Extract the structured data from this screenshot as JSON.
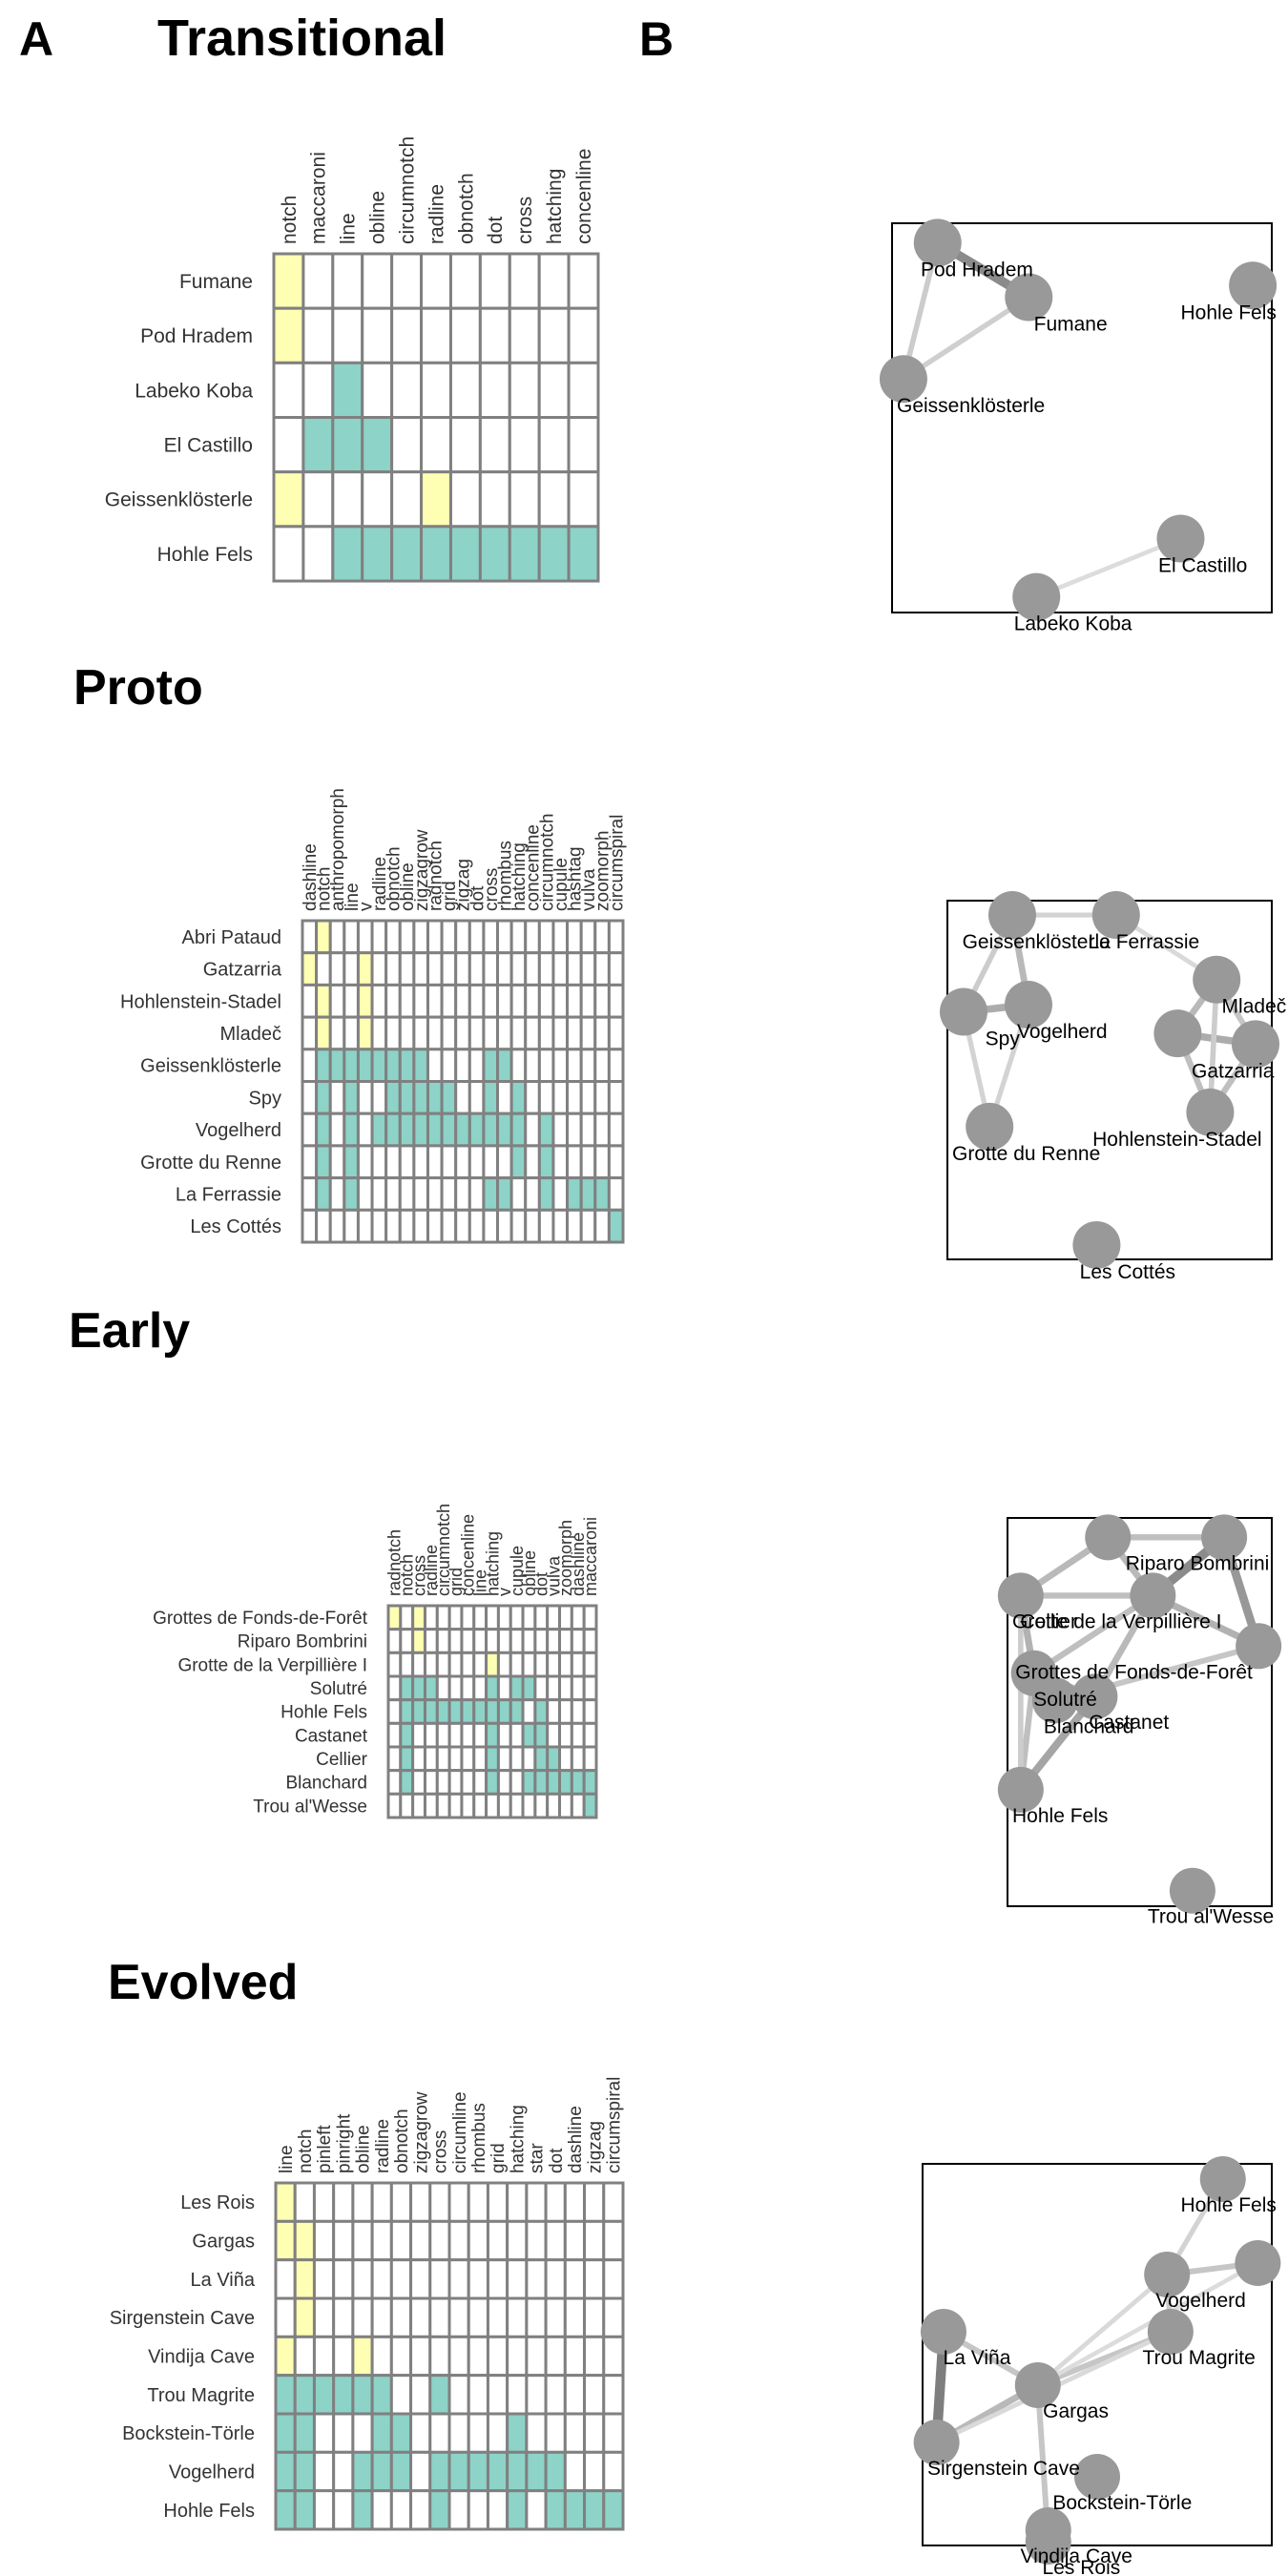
{
  "panel_labels": {
    "a": "A",
    "b": "B"
  },
  "colors": {
    "yellow": "#ffffb3",
    "teal": "#8dd3c7",
    "white": "#ffffff",
    "cell_border": "#808080",
    "node": "#999999",
    "edge": "#000000"
  },
  "chart_data": [
    {
      "type": "heatmap",
      "title": "Transitional",
      "columns": [
        "notch",
        "maccaroni",
        "line",
        "obline",
        "circumnotch",
        "radline",
        "obnotch",
        "dot",
        "cross",
        "hatching",
        "concenline"
      ],
      "rows": [
        {
          "site": "Fumane",
          "cells": "YWWWWWWWWWW"
        },
        {
          "site": "Pod Hradem",
          "cells": "YWWWWWWWWWW"
        },
        {
          "site": "Labeko Koba",
          "cells": "WWTWWWWWWWW"
        },
        {
          "site": "El Castillo",
          "cells": "WTTTWWWWWWW"
        },
        {
          "site": "Geissenklösterle",
          "cells": "YWWWWYWWWWW"
        },
        {
          "site": "Hohle Fels",
          "cells": "WWTTTTTTTTT"
        }
      ],
      "network": {
        "nodes": [
          {
            "id": "podhradem",
            "label": "Pod Hradem",
            "x": 0.12,
            "y": 0.05
          },
          {
            "id": "fumane",
            "label": "Fumane",
            "x": 0.36,
            "y": 0.19
          },
          {
            "id": "hohlefels",
            "label": "Hohle Fels",
            "x": 0.95,
            "y": 0.16
          },
          {
            "id": "geissen",
            "label": "Geissenklösterle",
            "x": 0.03,
            "y": 0.4
          },
          {
            "id": "elcastillo",
            "label": "El Castillo",
            "x": 0.76,
            "y": 0.81
          },
          {
            "id": "labeko",
            "label": "Labeko Koba",
            "x": 0.38,
            "y": 0.96
          }
        ],
        "edges": [
          {
            "from": "podhradem",
            "to": "fumane",
            "weight": 0.7
          },
          {
            "from": "podhradem",
            "to": "geissen",
            "weight": 0.2
          },
          {
            "from": "fumane",
            "to": "geissen",
            "weight": 0.18
          },
          {
            "from": "labeko",
            "to": "elcastillo",
            "weight": 0.08
          }
        ]
      }
    },
    {
      "type": "heatmap",
      "title": "Proto",
      "columns": [
        "dashline",
        "notch",
        "anthropomorph",
        "line",
        "v",
        "radline",
        "obnotch",
        "obline",
        "zigzagrow",
        "radnotch",
        "grid",
        "zigzag",
        "dot",
        "cross",
        "rhombus",
        "hatching",
        "concenline",
        "circumnotch",
        "cupule",
        "hashtag",
        "vulva",
        "zoomorph",
        "circumspiral"
      ],
      "rows": [
        {
          "site": "Abri Pataud",
          "cells": "WYWWWWWWWWWWWWWWWWWWWWW"
        },
        {
          "site": "Gatzarria",
          "cells": "YWWWYWWWWWWWWWWWWWWWWWW"
        },
        {
          "site": "Hohlenstein-Stadel",
          "cells": "WYWWYWWWWWWWWWWWWWWWWWW"
        },
        {
          "site": "Mladeč",
          "cells": "WYWWYWWWWWWWWWWWWWWWWWW"
        },
        {
          "site": "Geissenklösterle",
          "cells": "WTTTTTTTTWWWWTTWWWWWWWW"
        },
        {
          "site": "Spy",
          "cells": "WTWTWWTTTTTWWTWTWWWWWWW"
        },
        {
          "site": "Vogelherd",
          "cells": "WTWTWTTTTTTTTTTTWTWWWWW"
        },
        {
          "site": "Grotte du Renne",
          "cells": "WTWTWWWWWWWWWWWTWTWWWWW"
        },
        {
          "site": "La Ferrassie",
          "cells": "WTWTWWWWWWWWWTTWWTWTTTW"
        },
        {
          "site": "Les Cottés",
          "cells": "WWWWWWWWWWWWWWWWWWWWWWT"
        }
      ],
      "network": {
        "nodes": [
          {
            "id": "geissen",
            "label": "Geissenklösterle",
            "x": 0.2,
            "y": 0.04
          },
          {
            "id": "laferrassie",
            "label": "La Ferrassie",
            "x": 0.52,
            "y": 0.04
          },
          {
            "id": "mladec",
            "label": "Mladeč",
            "x": 0.83,
            "y": 0.22
          },
          {
            "id": "vogelherd",
            "label": "Vogelherd",
            "x": 0.25,
            "y": 0.29
          },
          {
            "id": "spy",
            "label": "Spy",
            "x": 0.05,
            "y": 0.31
          },
          {
            "id": "gatz1",
            "label": "",
            "x": 0.71,
            "y": 0.37
          },
          {
            "id": "gatzarria",
            "label": "Gatzarria",
            "x": 0.95,
            "y": 0.4
          },
          {
            "id": "hohlenstein",
            "label": "Hohlenstein-Stadel",
            "x": 0.81,
            "y": 0.59
          },
          {
            "id": "grotte",
            "label": "Grotte du Renne",
            "x": 0.13,
            "y": 0.63
          },
          {
            "id": "lescottes",
            "label": "Les Cottés",
            "x": 0.46,
            "y": 0.96
          }
        ],
        "edges": [
          {
            "from": "geissen",
            "to": "laferrassie",
            "weight": 0.15
          },
          {
            "from": "geissen",
            "to": "spy",
            "weight": 0.2
          },
          {
            "from": "geissen",
            "to": "vogelherd",
            "weight": 0.35
          },
          {
            "from": "spy",
            "to": "vogelherd",
            "weight": 0.45
          },
          {
            "from": "spy",
            "to": "grotte",
            "weight": 0.15
          },
          {
            "from": "vogelherd",
            "to": "grotte",
            "weight": 0.15
          },
          {
            "from": "mladec",
            "to": "gatz1",
            "weight": 0.35
          },
          {
            "from": "mladec",
            "to": "gatzarria",
            "weight": 0.25
          },
          {
            "from": "gatz1",
            "to": "gatzarria",
            "weight": 0.45
          },
          {
            "from": "gatz1",
            "to": "hohlenstein",
            "weight": 0.3
          },
          {
            "from": "gatzarria",
            "to": "hohlenstein",
            "weight": 0.3
          },
          {
            "from": "mladec",
            "to": "hohlenstein",
            "weight": 0.2
          },
          {
            "from": "laferrassie",
            "to": "mladec",
            "weight": 0.1
          }
        ]
      }
    },
    {
      "type": "heatmap",
      "title": "Early",
      "columns": [
        "radnotch",
        "notch",
        "cross",
        "radline",
        "circumnotch",
        "grid",
        "concenline",
        "line",
        "hatching",
        "v",
        "cupule",
        "obline",
        "dot",
        "vulva",
        "zoomorph",
        "dashline",
        "maccaroni"
      ],
      "rows": [
        {
          "site": "Grottes de Fonds-de-Forêt",
          "cells": "YWYWWWWWWWWWWWWWW"
        },
        {
          "site": "Riparo Bombrini",
          "cells": "WWYWWWWWWWWWWWWWW"
        },
        {
          "site": "Grotte de la Verpillière I",
          "cells": "WWWWWWWWYWWWWWWWW"
        },
        {
          "site": "Solutré",
          "cells": "WTTTWWWWTWTTWWWWW"
        },
        {
          "site": "Hohle Fels",
          "cells": "WTTTTTTTTTTWTWWWW"
        },
        {
          "site": "Castanet",
          "cells": "WTWWWWWWTWWTTWWWW"
        },
        {
          "site": "Cellier",
          "cells": "WTWWWWWWTWWWTTWWW"
        },
        {
          "site": "Blanchard",
          "cells": "WTWWWWWWTWWTTTTTT"
        },
        {
          "site": "Trou al'Wesse",
          "cells": "WWWWWWWWWWWWWWWWT"
        }
      ],
      "network": {
        "nodes": [
          {
            "id": "n1",
            "label": "",
            "x": 0.38,
            "y": 0.05
          },
          {
            "id": "riparo",
            "label": "Riparo Bombrini",
            "x": 0.82,
            "y": 0.05
          },
          {
            "id": "cellier",
            "label": "Cellier",
            "x": 0.05,
            "y": 0.2
          },
          {
            "id": "verp",
            "label": "Grotte de la Verpillière I",
            "x": 0.55,
            "y": 0.2
          },
          {
            "id": "fonds",
            "label": "Grottes de Fonds-de-Forêt",
            "x": 0.95,
            "y": 0.33
          },
          {
            "id": "solutre",
            "label": "Solutré",
            "x": 0.1,
            "y": 0.4
          },
          {
            "id": "blanchard",
            "label": "Blanchard",
            "x": 0.18,
            "y": 0.47
          },
          {
            "id": "castanet",
            "label": "Castanet",
            "x": 0.33,
            "y": 0.46
          },
          {
            "id": "hohlefels",
            "label": "Hohle Fels",
            "x": 0.05,
            "y": 0.7
          },
          {
            "id": "trou",
            "label": "Trou al'Wesse",
            "x": 0.7,
            "y": 0.96
          }
        ],
        "edges": [
          {
            "from": "riparo",
            "to": "verp",
            "weight": 0.7
          },
          {
            "from": "riparo",
            "to": "fonds",
            "weight": 0.6
          },
          {
            "from": "verp",
            "to": "fonds",
            "weight": 0.4
          },
          {
            "from": "n1",
            "to": "verp",
            "weight": 0.35
          },
          {
            "from": "n1",
            "to": "riparo",
            "weight": 0.3
          },
          {
            "from": "n1",
            "to": "cellier",
            "weight": 0.35
          },
          {
            "from": "cellier",
            "to": "solutre",
            "weight": 0.4
          },
          {
            "from": "cellier",
            "to": "verp",
            "weight": 0.3
          },
          {
            "from": "solutre",
            "to": "blanchard",
            "weight": 0.45
          },
          {
            "from": "solutre",
            "to": "castanet",
            "weight": 0.4
          },
          {
            "from": "blanchard",
            "to": "castanet",
            "weight": 0.45
          },
          {
            "from": "verp",
            "to": "castanet",
            "weight": 0.35
          },
          {
            "from": "verp",
            "to": "solutre",
            "weight": 0.3
          },
          {
            "from": "castanet",
            "to": "hohlefels",
            "weight": 0.5
          },
          {
            "from": "solutre",
            "to": "hohlefels",
            "weight": 0.3
          },
          {
            "from": "cellier",
            "to": "hohlefels",
            "weight": 0.2
          },
          {
            "from": "blanchard",
            "to": "fonds",
            "weight": 0.25
          }
        ]
      }
    },
    {
      "type": "heatmap",
      "title": "Evolved",
      "columns": [
        "line",
        "notch",
        "pinleft",
        "pinright",
        "obline",
        "radline",
        "obnotch",
        "zigzagrow",
        "cross",
        "circumline",
        "rhombus",
        "grid",
        "hatching",
        "star",
        "dot",
        "dashline",
        "zigzag",
        "circumspiral"
      ],
      "rows": [
        {
          "site": "Les Rois",
          "cells": "YWWWWWWWWWWWWWWWWW"
        },
        {
          "site": "Gargas",
          "cells": "YYWWWWWWWWWWWWWWWW"
        },
        {
          "site": "La Viña",
          "cells": "WYWWWWWWWWWWWWWWWW"
        },
        {
          "site": "Sirgenstein Cave",
          "cells": "WYWWWWWWWWWWWWWWWW"
        },
        {
          "site": "Vindija Cave",
          "cells": "YWWWYWWWWWWWWWWWWW"
        },
        {
          "site": "Trou Magrite",
          "cells": "TTTTTTWWTWWWWWWWWW"
        },
        {
          "site": "Bockstein-Törle",
          "cells": "TTWWWTTWWWWWTWWWWW"
        },
        {
          "site": "Vogelherd",
          "cells": "TTWWTTTWTTTTTTTWWW"
        },
        {
          "site": "Hohle Fels",
          "cells": "TTWWTWWWTWWWTWTTTT"
        }
      ],
      "network": {
        "nodes": [
          {
            "id": "hohlefels",
            "label": "Hohle Fels",
            "x": 0.86,
            "y": 0.04
          },
          {
            "id": "vogelherd",
            "label": "Vogelherd",
            "x": 0.7,
            "y": 0.29
          },
          {
            "id": "v2",
            "label": "",
            "x": 0.96,
            "y": 0.26
          },
          {
            "id": "lavina",
            "label": "La Viña",
            "x": 0.06,
            "y": 0.44
          },
          {
            "id": "trou",
            "label": "Trou Magrite",
            "x": 0.71,
            "y": 0.44
          },
          {
            "id": "gargas",
            "label": "Gargas",
            "x": 0.33,
            "y": 0.58
          },
          {
            "id": "sirgenstein",
            "label": "Sirgenstein Cave",
            "x": 0.04,
            "y": 0.73
          },
          {
            "id": "bockstein",
            "label": "Bockstein-Törle",
            "x": 0.5,
            "y": 0.82
          },
          {
            "id": "vindija",
            "label": "Vindija Cave",
            "x": 0.36,
            "y": 0.96
          },
          {
            "id": "lesrois",
            "label": "Les Rois",
            "x": 0.36,
            "y": 0.99
          }
        ],
        "edges": [
          {
            "from": "lavina",
            "to": "sirgenstein",
            "weight": 0.8
          },
          {
            "from": "lavina",
            "to": "gargas",
            "weight": 0.25
          },
          {
            "from": "sirgenstein",
            "to": "gargas",
            "weight": 0.35
          },
          {
            "from": "gargas",
            "to": "trou",
            "weight": 0.25
          },
          {
            "from": "gargas",
            "to": "vogelherd",
            "weight": 0.1
          },
          {
            "from": "trou",
            "to": "vogelherd",
            "weight": 0.2
          },
          {
            "from": "vogelherd",
            "to": "v2",
            "weight": 0.25
          },
          {
            "from": "hohlefels",
            "to": "vogelherd",
            "weight": 0.15
          },
          {
            "from": "gargas",
            "to": "lesrois",
            "weight": 0.25
          },
          {
            "from": "trou",
            "to": "sirgenstein",
            "weight": 0.1
          },
          {
            "from": "v2",
            "to": "gargas",
            "weight": 0.08
          }
        ]
      }
    }
  ]
}
